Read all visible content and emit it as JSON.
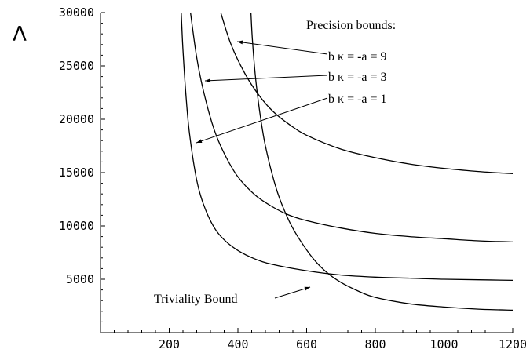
{
  "chart_data": {
    "type": "line",
    "ylabel": "Λ",
    "xlabel": "",
    "xlim": [
      0,
      1200
    ],
    "ylim": [
      0,
      30000
    ],
    "xticks": [
      200,
      400,
      600,
      800,
      1000,
      1200
    ],
    "yticks": [
      5000,
      10000,
      15000,
      20000,
      25000,
      30000
    ],
    "legend_title": "Precision bounds:",
    "series": [
      {
        "name": "b κ = -a = 9",
        "x": [
          350,
          380,
          420,
          460,
          500,
          550,
          600,
          700,
          800,
          900,
          1000,
          1100,
          1200
        ],
        "y": [
          30000,
          27000,
          24300,
          22300,
          20800,
          19500,
          18500,
          17200,
          16400,
          15800,
          15400,
          15100,
          14900
        ]
      },
      {
        "name": "b κ = -a = 3",
        "x": [
          262,
          280,
          300,
          330,
          360,
          400,
          450,
          500,
          550,
          600,
          700,
          800,
          900,
          1000,
          1100,
          1200
        ],
        "y": [
          30000,
          25800,
          22600,
          19100,
          16800,
          14600,
          12900,
          11800,
          11000,
          10500,
          9800,
          9300,
          9000,
          8800,
          8600,
          8500
        ]
      },
      {
        "name": "b κ = -a = 1",
        "x": [
          235,
          240,
          250,
          260,
          280,
          300,
          330,
          360,
          400,
          450,
          500,
          600,
          700,
          800,
          900,
          1000,
          1100,
          1200
        ],
        "y": [
          30000,
          26500,
          21700,
          18400,
          14300,
          12000,
          9900,
          8700,
          7700,
          6900,
          6400,
          5800,
          5400,
          5200,
          5100,
          5000,
          4950,
          4900
        ]
      },
      {
        "name": "Triviality Bound",
        "x": [
          438,
          442,
          450,
          460,
          470,
          480,
          500,
          520,
          550,
          580,
          620,
          660,
          700,
          750,
          800,
          900,
          1000,
          1100,
          1200
        ],
        "y": [
          30000,
          27500,
          24300,
          21500,
          19300,
          17500,
          14800,
          12700,
          10400,
          8700,
          6900,
          5600,
          4700,
          3900,
          3300,
          2700,
          2400,
          2200,
          2100
        ]
      }
    ],
    "annotations": [
      {
        "text": "Precision bounds:",
        "role": "legend-title"
      },
      {
        "text": "b κ = -a = 9",
        "series": 0
      },
      {
        "text": "b κ = -a = 3",
        "series": 1
      },
      {
        "text": "b κ = -a = 1",
        "series": 2
      },
      {
        "text": "Triviality Bound",
        "series": 3
      }
    ]
  }
}
